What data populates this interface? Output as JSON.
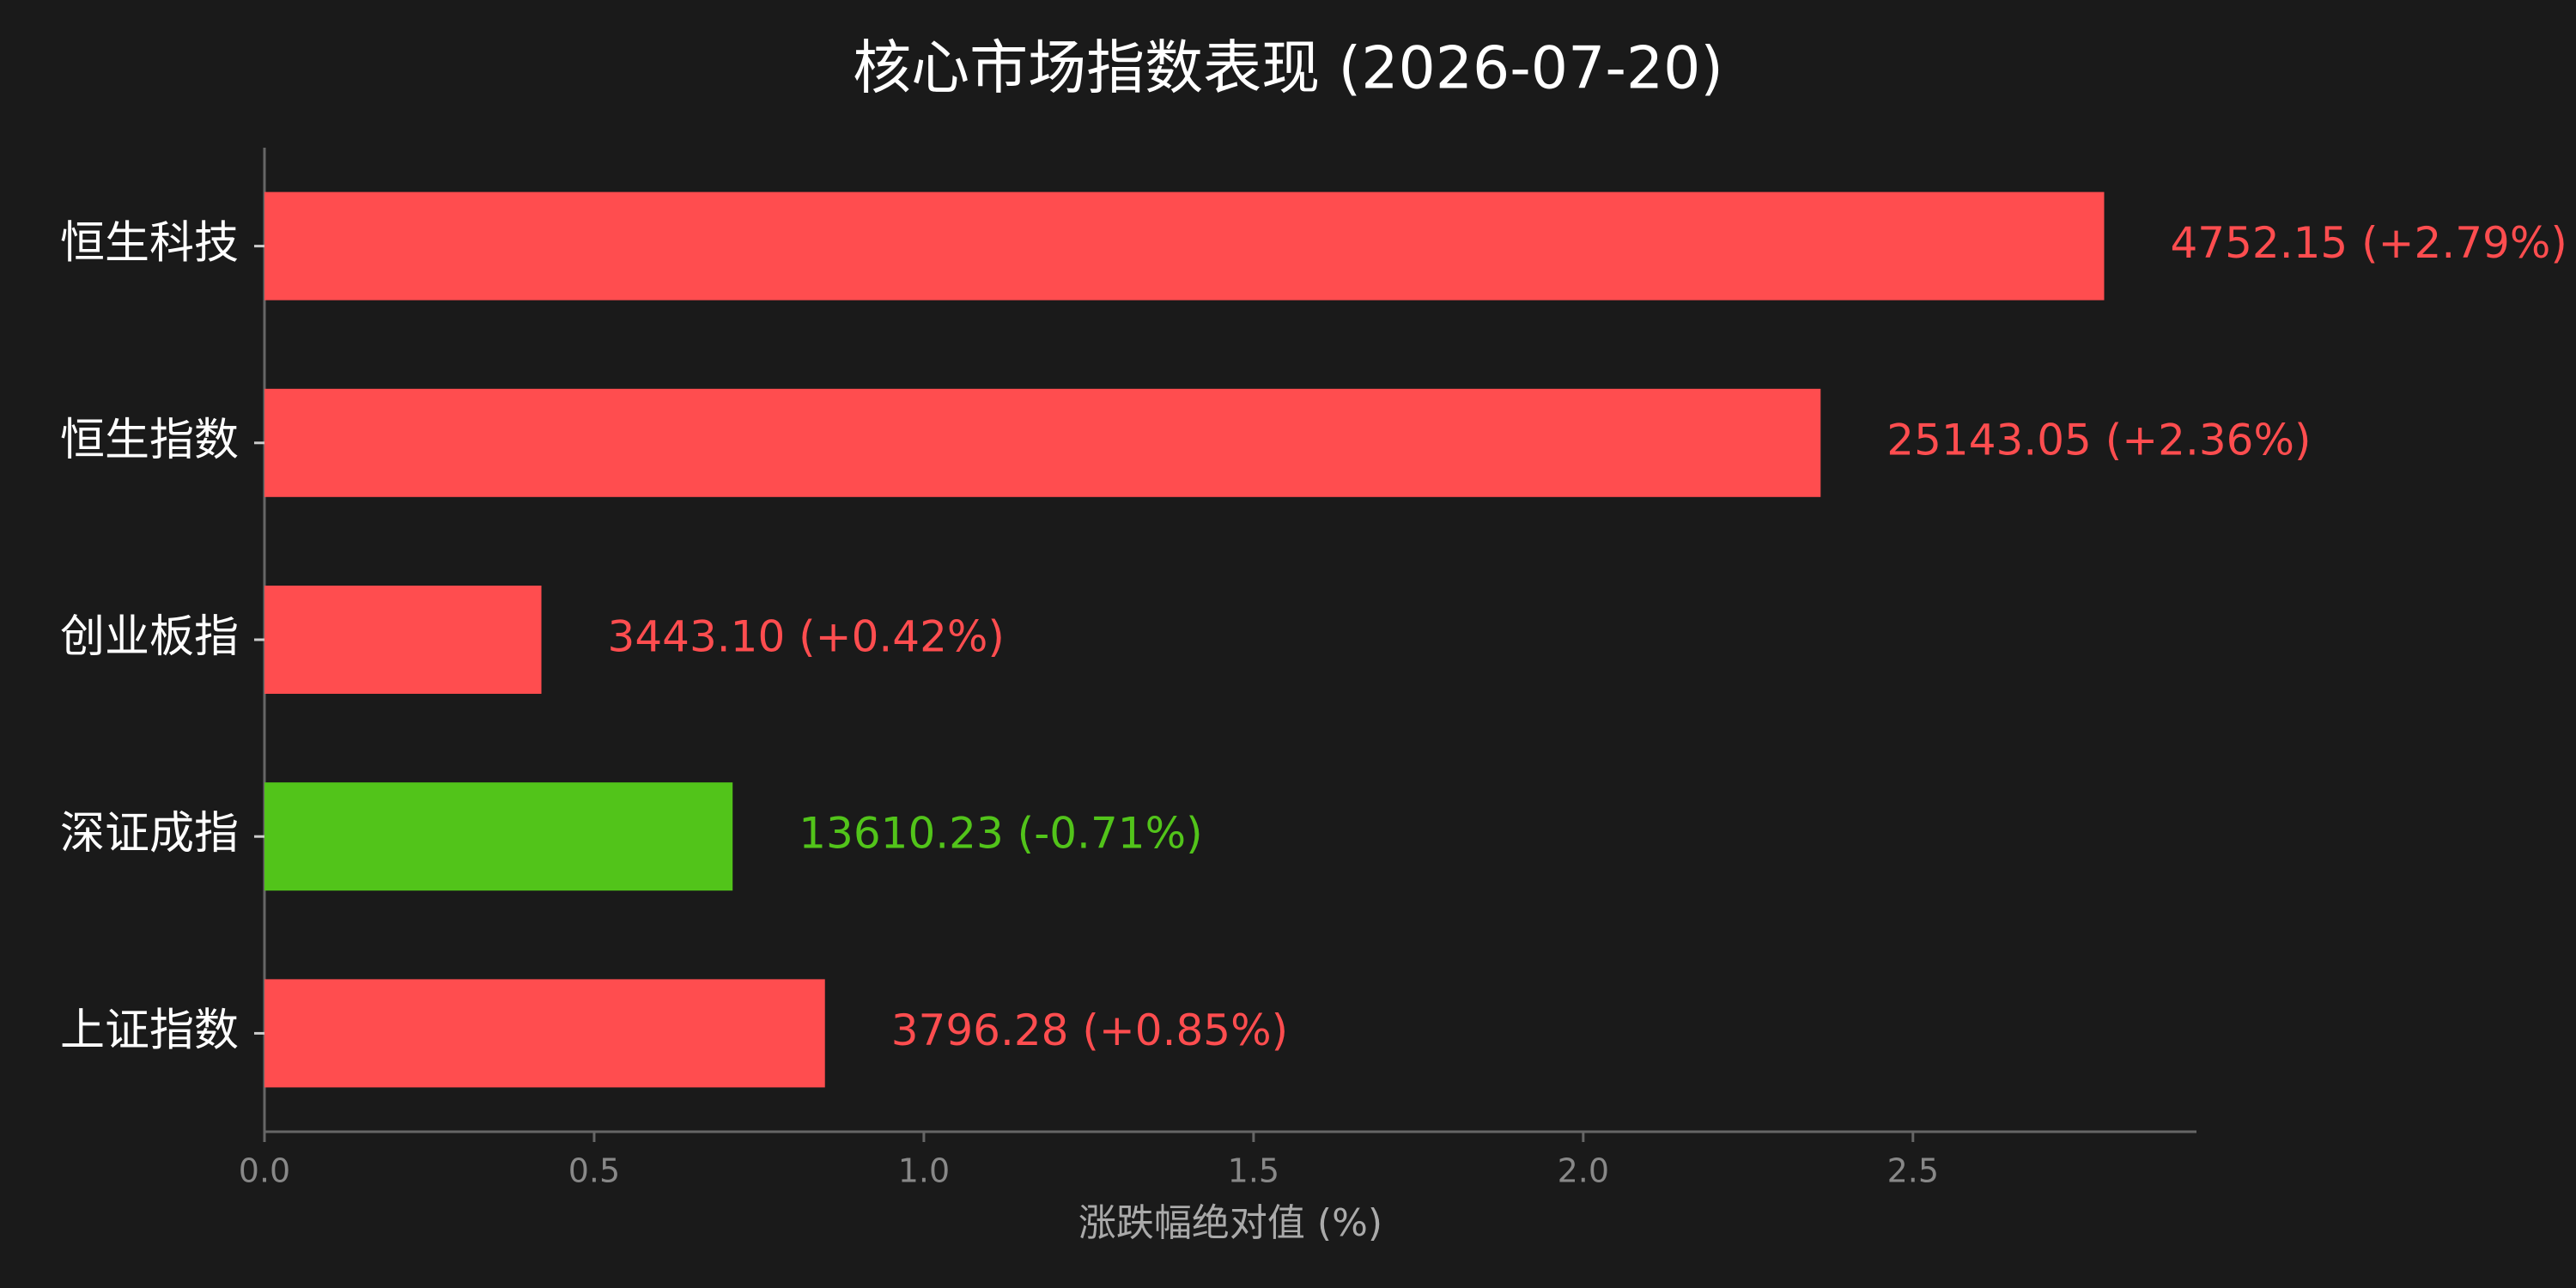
{
  "chart_data": {
    "type": "barh",
    "title": "核心市场指数表现 (2026-07-20)",
    "x_label": "涨跌幅绝对值 (%)",
    "categories": [
      "恒生科技",
      "恒生指数",
      "创业板指",
      "深证成指",
      "上证指数"
    ],
    "values": [
      2.79,
      2.36,
      0.42,
      0.71,
      0.85
    ],
    "value_labels": [
      "4752.15 (+2.79%)",
      "25143.05 (+2.36%)",
      "3443.10 (+0.42%)",
      "13610.23 (-0.71%)",
      "3796.28 (+0.85%)"
    ],
    "colors": [
      "#ff4d4f",
      "#ff4d4f",
      "#ff4d4f",
      "#52c41a",
      "#ff4d4f"
    ],
    "xlim": [
      0,
      2.93
    ],
    "xticks": [
      {
        "value": 0,
        "label": "0.0"
      },
      0.5,
      {
        "value": 1,
        "label": "1.0"
      },
      1.5,
      {
        "value": 2,
        "label": "2.0"
      },
      2.5
    ],
    "grid": false
  }
}
